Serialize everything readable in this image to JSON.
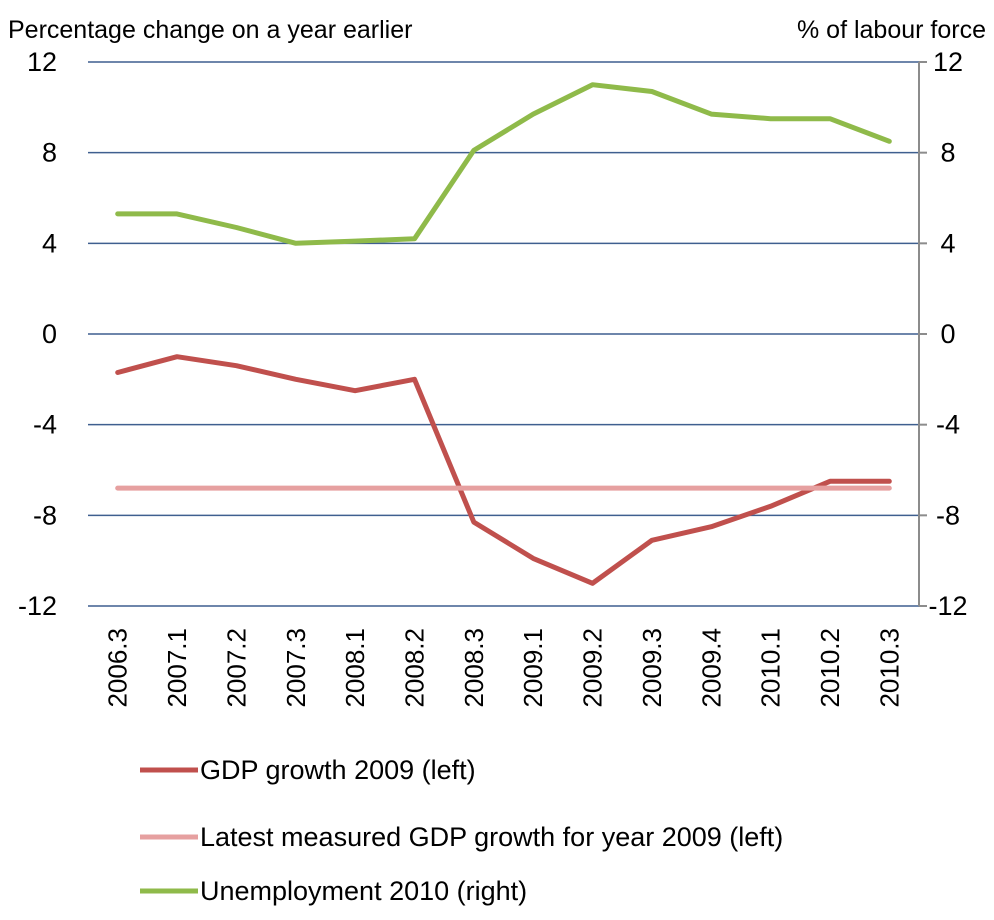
{
  "chart_data": {
    "type": "line",
    "title": "",
    "ylabel_left": "Percentage change on a year earlier",
    "ylabel_right": "% of labour force",
    "categories": [
      "2006.3",
      "2007.1",
      "2007.2",
      "2007.3",
      "2008.1",
      "2008.2",
      "2008.3",
      "2009.1",
      "2009.2",
      "2009.3",
      "2009.4",
      "2010.1",
      "2010.2",
      "2010.3"
    ],
    "ylim_left": [
      -12,
      12
    ],
    "ylim_right": [
      -12,
      12
    ],
    "yticks_left": [
      "12",
      "8",
      "4",
      "0",
      "-4",
      "-8",
      "-12"
    ],
    "yticks_right": [
      "12",
      "8",
      "4",
      "0",
      "-4",
      "-8",
      "-12"
    ],
    "grid": "horizontal",
    "legend_position": "bottom",
    "series": [
      {
        "name": "GDP growth 2009 (left)",
        "axis": "left",
        "color": "#c0504d",
        "values": [
          -1.7,
          -1.0,
          -1.4,
          -2.0,
          -2.5,
          -2.0,
          -8.3,
          -9.9,
          -11.0,
          -9.1,
          -8.5,
          -7.6,
          -6.5,
          -6.5
        ]
      },
      {
        "name": "Latest measured GDP growth for year 2009 (left)",
        "axis": "left",
        "color": "#e6a0a0",
        "values": [
          -6.8,
          -6.8,
          -6.8,
          -6.8,
          -6.8,
          -6.8,
          -6.8,
          -6.8,
          -6.8,
          -6.8,
          -6.8,
          -6.8,
          -6.8,
          -6.8
        ]
      },
      {
        "name": "Unemployment 2010 (right)",
        "axis": "right",
        "color": "#8fba4a",
        "values": [
          5.3,
          5.3,
          4.7,
          4.0,
          4.1,
          4.2,
          8.1,
          9.7,
          11.0,
          10.7,
          9.7,
          9.5,
          9.5,
          8.5
        ]
      }
    ]
  }
}
